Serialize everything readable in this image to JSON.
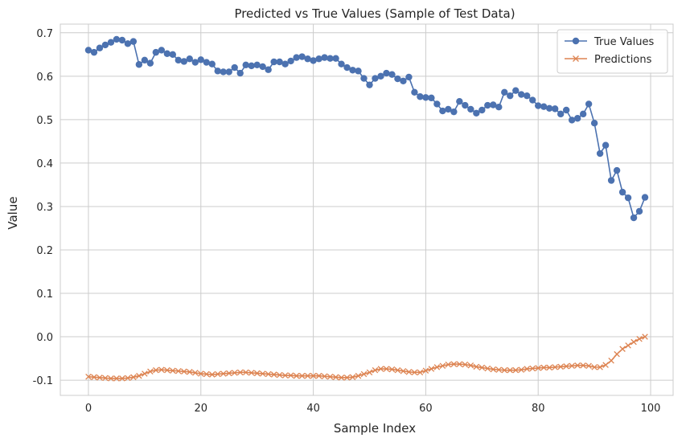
{
  "chart_data": {
    "type": "line",
    "title": "Predicted vs True Values (Sample of Test Data)",
    "xlabel": "Sample Index",
    "ylabel": "Value",
    "xlim": [
      -5,
      104
    ],
    "ylim": [
      -0.135,
      0.72
    ],
    "xticks": [
      0,
      20,
      40,
      60,
      80,
      100
    ],
    "yticks": [
      -0.1,
      0.0,
      0.1,
      0.2,
      0.3,
      0.4,
      0.5,
      0.6,
      0.7
    ],
    "grid": true,
    "legend_position": "top-right",
    "series": [
      {
        "name": "True Values",
        "color": "#4c72b0",
        "marker": "circle",
        "values": [
          0.66,
          0.655,
          0.665,
          0.672,
          0.678,
          0.685,
          0.683,
          0.675,
          0.68,
          0.627,
          0.637,
          0.63,
          0.655,
          0.66,
          0.652,
          0.65,
          0.637,
          0.634,
          0.64,
          0.632,
          0.638,
          0.632,
          0.628,
          0.612,
          0.61,
          0.61,
          0.62,
          0.607,
          0.626,
          0.624,
          0.626,
          0.622,
          0.615,
          0.633,
          0.633,
          0.628,
          0.635,
          0.643,
          0.645,
          0.64,
          0.636,
          0.64,
          0.643,
          0.641,
          0.641,
          0.628,
          0.62,
          0.614,
          0.612,
          0.595,
          0.58,
          0.595,
          0.6,
          0.607,
          0.604,
          0.594,
          0.589,
          0.598,
          0.563,
          0.553,
          0.551,
          0.55,
          0.536,
          0.52,
          0.524,
          0.518,
          0.542,
          0.533,
          0.524,
          0.515,
          0.522,
          0.533,
          0.534,
          0.529,
          0.563,
          0.555,
          0.567,
          0.558,
          0.555,
          0.545,
          0.532,
          0.53,
          0.526,
          0.525,
          0.513,
          0.522,
          0.499,
          0.503,
          0.513,
          0.536,
          0.492,
          0.422,
          0.441,
          0.36,
          0.383,
          0.333,
          0.32,
          0.274,
          0.289,
          0.321
        ]
      },
      {
        "name": "Predictions",
        "color": "#dd8452",
        "marker": "x",
        "values": [
          -0.092,
          -0.093,
          -0.094,
          -0.095,
          -0.096,
          -0.096,
          -0.096,
          -0.095,
          -0.093,
          -0.09,
          -0.085,
          -0.08,
          -0.077,
          -0.076,
          -0.077,
          -0.078,
          -0.079,
          -0.08,
          -0.081,
          -0.083,
          -0.085,
          -0.086,
          -0.087,
          -0.086,
          -0.085,
          -0.084,
          -0.083,
          -0.082,
          -0.082,
          -0.083,
          -0.084,
          -0.085,
          -0.086,
          -0.087,
          -0.088,
          -0.089,
          -0.089,
          -0.09,
          -0.09,
          -0.09,
          -0.09,
          -0.09,
          -0.091,
          -0.092,
          -0.093,
          -0.094,
          -0.094,
          -0.093,
          -0.09,
          -0.086,
          -0.082,
          -0.077,
          -0.074,
          -0.074,
          -0.075,
          -0.077,
          -0.079,
          -0.081,
          -0.082,
          -0.082,
          -0.078,
          -0.074,
          -0.07,
          -0.067,
          -0.064,
          -0.063,
          -0.063,
          -0.064,
          -0.066,
          -0.069,
          -0.071,
          -0.073,
          -0.075,
          -0.076,
          -0.077,
          -0.077,
          -0.077,
          -0.076,
          -0.074,
          -0.073,
          -0.072,
          -0.071,
          -0.071,
          -0.07,
          -0.069,
          -0.068,
          -0.067,
          -0.066,
          -0.066,
          -0.067,
          -0.07,
          -0.07,
          -0.065,
          -0.055,
          -0.04,
          -0.028,
          -0.02,
          -0.012,
          -0.005,
          0.0
        ]
      }
    ]
  }
}
